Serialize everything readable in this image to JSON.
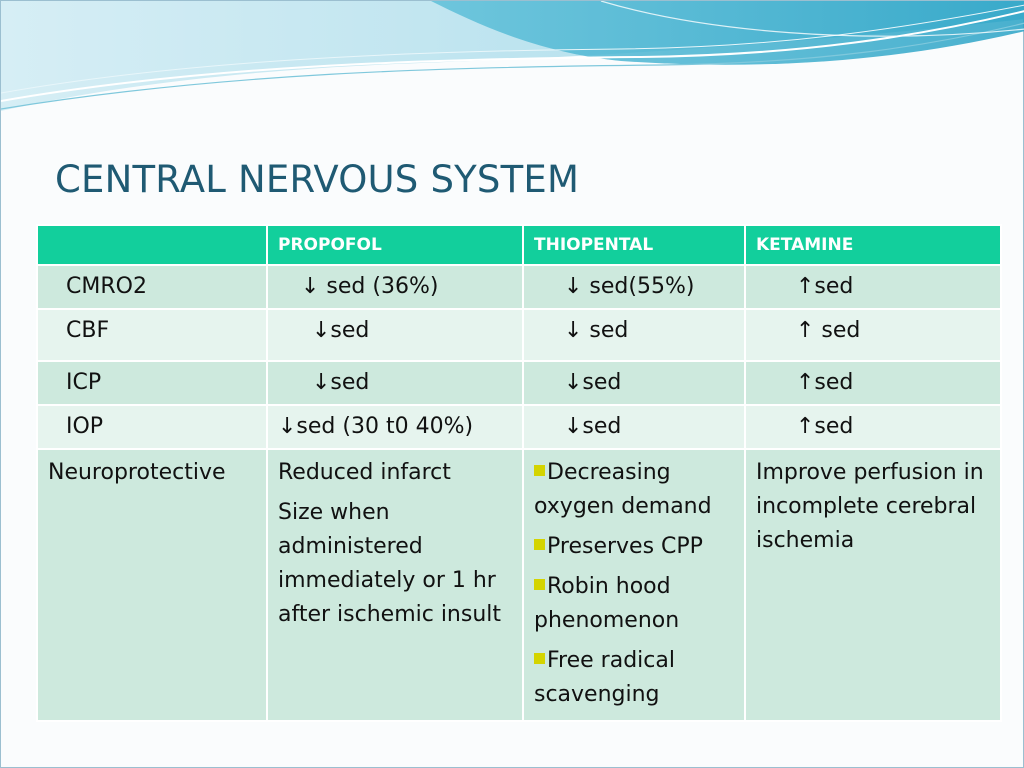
{
  "slide": {
    "title": "CENTRAL NERVOUS SYSTEM"
  },
  "table": {
    "headers": [
      "",
      "PROPOFOL",
      "THIOPENTAL",
      "KETAMINE"
    ],
    "rows": [
      [
        "CMRO2",
        "↓ sed (36%)",
        "↓ sed(55%)",
        "↑sed"
      ],
      [
        "CBF",
        "↓sed",
        "↓ sed",
        "↑ sed"
      ],
      [
        "ICP",
        "↓sed",
        "↓sed",
        "↑sed"
      ],
      [
        "IOP",
        "↓sed (30 t0 40%)",
        "↓sed",
        "↑sed"
      ]
    ],
    "neuro": {
      "label": "Neuroprotective",
      "propofol": [
        "Reduced infarct",
        "Size when administered immediately or 1 hr after ischemic insult"
      ],
      "thiopental": [
        "Decreasing oxygen demand",
        "Preserves CPP",
        "Robin hood phenomenon",
        "Free radical scavenging"
      ],
      "ketamine": "Improve perfusion in incomplete cerebral ischemia"
    }
  },
  "colors": {
    "header_bg": "#12cf9c",
    "row_dark": "#cde9dd",
    "row_light": "#e6f4ee",
    "title": "#1f5a73",
    "bullet": "#d4d400"
  }
}
